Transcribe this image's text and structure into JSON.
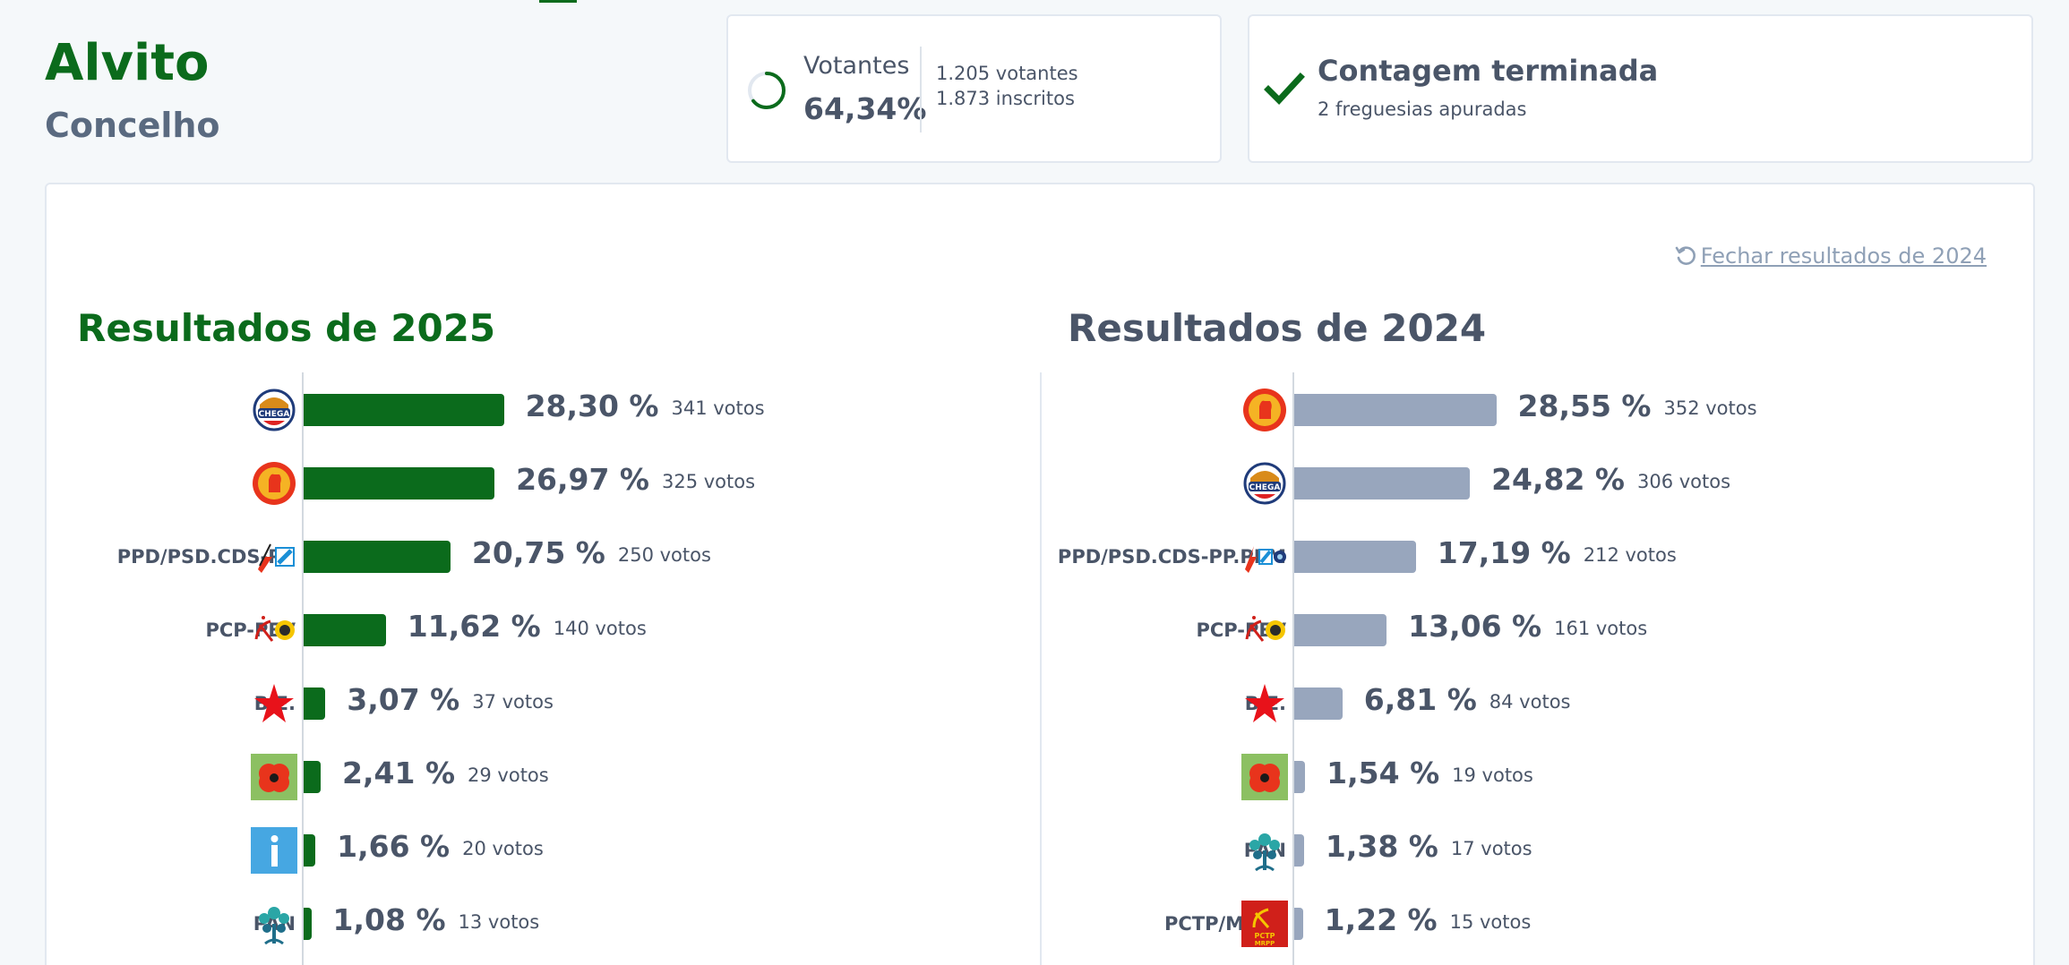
{
  "location": {
    "title": "Alvito",
    "subtitle": "Concelho"
  },
  "turnout": {
    "label": "Votantes",
    "value": "64,34%",
    "fraction": 0.6434,
    "voters": "1.205 votantes",
    "registered": "1.873 inscritos"
  },
  "count": {
    "title": "Contagem terminada",
    "subtitle": "2 freguesias apuradas"
  },
  "close_link": "Fechar resultados de 2024",
  "colors": {
    "accent": "#0b6b1c",
    "bar_2025": "#0b6b1c",
    "bar_2024": "#98a6bd",
    "text": "#4a5568"
  },
  "chart_data": [
    {
      "type": "bar",
      "orientation": "horizontal",
      "title": "Resultados de 2025",
      "color": "#0b6b1c",
      "categories": [
        "CH",
        "PS",
        "PPD/PSD.CDS-PP",
        "PCP-PEV",
        "B.E.",
        "L",
        "IL",
        "PAN"
      ],
      "values": [
        28.3,
        26.97,
        20.75,
        11.62,
        3.07,
        2.41,
        1.66,
        1.08
      ],
      "pct_labels": [
        "28,30 %",
        "26,97 %",
        "20,75 %",
        "11,62 %",
        "3,07 %",
        "2,41 %",
        "1,66 %",
        "1,08 %"
      ],
      "vote_labels": [
        "341 votos",
        "325 votos",
        "250 votos",
        "140 votos",
        "37 votos",
        "29 votos",
        "20 votos",
        "13 votos"
      ],
      "logos": [
        "chega-logo",
        "ps-logo",
        "psd-cds-logo",
        "pcp-pev-logo",
        "be-logo",
        "livre-logo",
        "il-logo",
        "pan-logo"
      ]
    },
    {
      "type": "bar",
      "orientation": "horizontal",
      "title": "Resultados de 2024",
      "color": "#98a6bd",
      "categories": [
        "PS",
        "CH",
        "PPD/PSD.CDS-PP.PPM",
        "PCP-PEV",
        "B.E.",
        "L",
        "PAN",
        "PCTP/MRPP"
      ],
      "values": [
        28.55,
        24.82,
        17.19,
        13.06,
        6.81,
        1.54,
        1.38,
        1.22
      ],
      "pct_labels": [
        "28,55 %",
        "24,82 %",
        "17,19 %",
        "13,06 %",
        "6,81 %",
        "1,54 %",
        "1,38 %",
        "1,22 %"
      ],
      "vote_labels": [
        "352 votos",
        "306 votos",
        "212 votos",
        "161 votos",
        "84 votos",
        "19 votos",
        "17 votos",
        "15 votos"
      ],
      "logos": [
        "ps-logo",
        "chega-logo",
        "psd-cds-ppm-logo",
        "pcp-pev-logo",
        "be-logo",
        "livre-logo",
        "pan-logo",
        "pctp-mrpp-logo"
      ]
    }
  ]
}
